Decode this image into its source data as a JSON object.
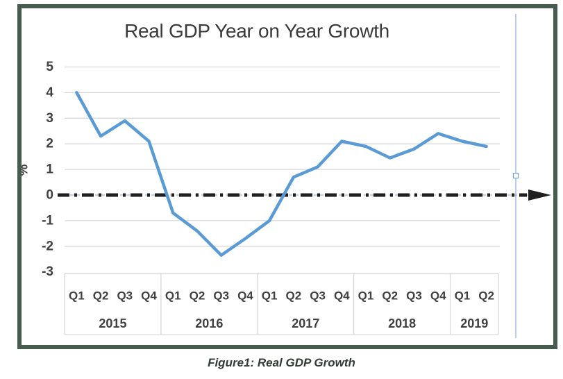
{
  "caption": "Figure1: Real GDP Growth",
  "chart_data": {
    "type": "line",
    "title": "Real GDP Year on Year Growth",
    "xlabel": "",
    "ylabel": "%",
    "ylim": [
      -3,
      5
    ],
    "yticks": [
      5,
      4,
      3,
      2,
      1,
      0,
      -1,
      -2,
      -3
    ],
    "grid": true,
    "legend": false,
    "categories": [
      "Q1",
      "Q2",
      "Q3",
      "Q4",
      "Q1",
      "Q2",
      "Q3",
      "Q4",
      "Q1",
      "Q2",
      "Q3",
      "Q4",
      "Q1",
      "Q2",
      "Q3",
      "Q4",
      "Q1",
      "Q2"
    ],
    "category_groups": [
      {
        "label": "2015",
        "span": 4
      },
      {
        "label": "2016",
        "span": 4
      },
      {
        "label": "2017",
        "span": 4
      },
      {
        "label": "2018",
        "span": 4
      },
      {
        "label": "2019",
        "span": 2
      }
    ],
    "values": [
      4.0,
      2.3,
      2.9,
      2.1,
      -0.7,
      -1.4,
      -2.35,
      -1.7,
      -1.0,
      0.7,
      1.1,
      2.1,
      1.9,
      1.45,
      1.8,
      2.4,
      2.1,
      1.9
    ],
    "line_color": "#5b9bd5",
    "zero_line": {
      "style": "dash-dot",
      "color": "#1f1f1f",
      "arrow_at_end": true
    }
  },
  "colors": {
    "frame_border": "#465d4e",
    "gridline": "#d9d9d9",
    "axis_text": "#404040",
    "zero_underlay": "#ccd4de",
    "selection_line": "#8faadc",
    "selection_handle_stroke": "#6fa0d8"
  }
}
